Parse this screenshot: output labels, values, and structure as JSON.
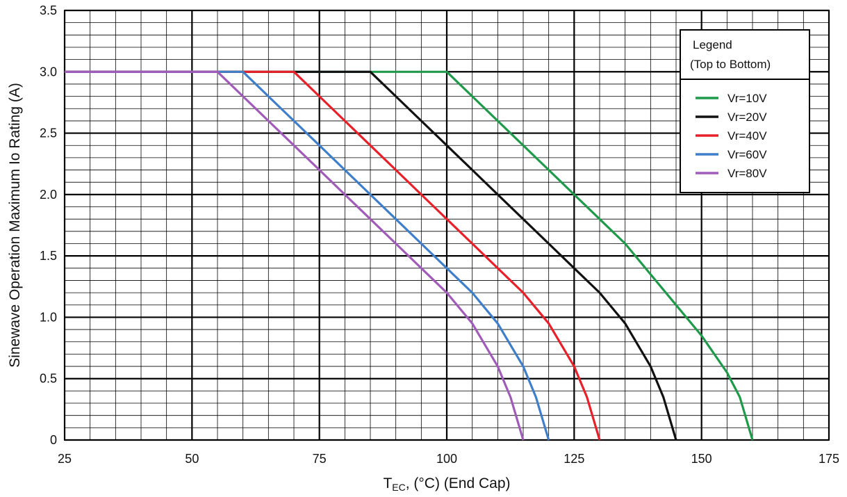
{
  "chart_data": {
    "type": "line",
    "xlabel_main": "T",
    "xlabel_sub": "EC",
    "xlabel_rest": ", (°C) (End Cap)",
    "ylabel": "Sinewave Operation Maximum Io Rating (A)",
    "xlim": [
      25,
      175
    ],
    "ylim": [
      0,
      3.5
    ],
    "x_ticks": [
      25,
      50,
      75,
      100,
      125,
      150,
      175
    ],
    "x_tick_labels": [
      "25",
      "50",
      "75",
      "100",
      "125",
      "150",
      "175"
    ],
    "y_ticks": [
      0,
      0.5,
      1.0,
      1.5,
      2.0,
      2.5,
      3.0,
      3.5
    ],
    "y_tick_labels": [
      "0",
      "0.5",
      "1.0",
      "1.5",
      "2.0",
      "2.5",
      "3.0",
      "3.5"
    ],
    "grid": true,
    "legend": {
      "title_line1": "Legend",
      "title_line2": "(Top to Bottom)",
      "placement": "top-right"
    },
    "series": [
      {
        "name": "Vr=10V",
        "color": "#1f9a4a",
        "points": [
          [
            25,
            3.0
          ],
          [
            100,
            3.0
          ],
          [
            105,
            2.8
          ],
          [
            110,
            2.6
          ],
          [
            115,
            2.4
          ],
          [
            120,
            2.2
          ],
          [
            125,
            2.0
          ],
          [
            130,
            1.8
          ],
          [
            135,
            1.6
          ],
          [
            140,
            1.35
          ],
          [
            145,
            1.1
          ],
          [
            150,
            0.85
          ],
          [
            155,
            0.55
          ],
          [
            157.5,
            0.35
          ],
          [
            160,
            0.0
          ]
        ]
      },
      {
        "name": "Vr=20V",
        "color": "#111111",
        "points": [
          [
            25,
            3.0
          ],
          [
            85,
            3.0
          ],
          [
            90,
            2.8
          ],
          [
            95,
            2.6
          ],
          [
            100,
            2.4
          ],
          [
            105,
            2.2
          ],
          [
            110,
            2.0
          ],
          [
            115,
            1.8
          ],
          [
            120,
            1.6
          ],
          [
            125,
            1.4
          ],
          [
            130,
            1.2
          ],
          [
            135,
            0.95
          ],
          [
            140,
            0.6
          ],
          [
            142.5,
            0.35
          ],
          [
            145,
            0.0
          ]
        ]
      },
      {
        "name": "Vr=40V",
        "color": "#e8202a",
        "points": [
          [
            25,
            3.0
          ],
          [
            70,
            3.0
          ],
          [
            75,
            2.8
          ],
          [
            80,
            2.6
          ],
          [
            85,
            2.4
          ],
          [
            90,
            2.2
          ],
          [
            95,
            2.0
          ],
          [
            100,
            1.8
          ],
          [
            105,
            1.6
          ],
          [
            110,
            1.4
          ],
          [
            115,
            1.2
          ],
          [
            120,
            0.95
          ],
          [
            125,
            0.6
          ],
          [
            127.5,
            0.35
          ],
          [
            130,
            0.0
          ]
        ]
      },
      {
        "name": "Vr=60V",
        "color": "#3f7fc9",
        "points": [
          [
            25,
            3.0
          ],
          [
            60,
            3.0
          ],
          [
            65,
            2.8
          ],
          [
            70,
            2.6
          ],
          [
            75,
            2.4
          ],
          [
            80,
            2.2
          ],
          [
            85,
            2.0
          ],
          [
            90,
            1.8
          ],
          [
            95,
            1.6
          ],
          [
            100,
            1.4
          ],
          [
            105,
            1.2
          ],
          [
            110,
            0.95
          ],
          [
            115,
            0.6
          ],
          [
            117.5,
            0.35
          ],
          [
            120,
            0.0
          ]
        ]
      },
      {
        "name": "Vr=80V",
        "color": "#a05cb8",
        "points": [
          [
            25,
            3.0
          ],
          [
            55,
            3.0
          ],
          [
            60,
            2.8
          ],
          [
            65,
            2.6
          ],
          [
            70,
            2.4
          ],
          [
            75,
            2.2
          ],
          [
            80,
            2.0
          ],
          [
            85,
            1.8
          ],
          [
            90,
            1.6
          ],
          [
            95,
            1.4
          ],
          [
            100,
            1.2
          ],
          [
            105,
            0.95
          ],
          [
            110,
            0.6
          ],
          [
            112.5,
            0.35
          ],
          [
            115,
            0.0
          ]
        ]
      }
    ]
  }
}
